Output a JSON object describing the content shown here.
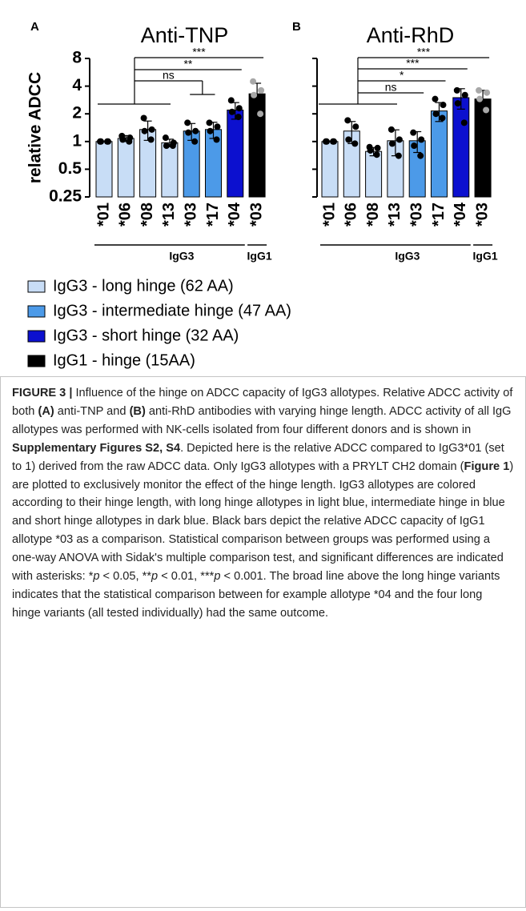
{
  "chart_data": [
    {
      "type": "bar",
      "panel": "A",
      "title": "Anti-TNP",
      "y_label": "relative ADCC",
      "categories": [
        "*01",
        "*06",
        "*08",
        "*13",
        "*03",
        "*17",
        "*04",
        "*03"
      ],
      "values": [
        1,
        1.08,
        1.35,
        0.97,
        1.3,
        1.35,
        2.2,
        3.3
      ],
      "errors": [
        0,
        0.08,
        0.32,
        0.09,
        0.27,
        0.27,
        0.45,
        1.0
      ],
      "points": [
        [
          1,
          1,
          1,
          1
        ],
        [
          1.15,
          1.1,
          1.05,
          1.0
        ],
        [
          1.8,
          1.35,
          1.3,
          1.05
        ],
        [
          1.1,
          0.97,
          0.9,
          0.9
        ],
        [
          1.6,
          1.3,
          1.25,
          1.0
        ],
        [
          1.6,
          1.45,
          1.3,
          1.05
        ],
        [
          2.8,
          2.3,
          2.1,
          1.85
        ],
        [
          4.5,
          3.6,
          3.2,
          2.0
        ]
      ],
      "colors": [
        "#c8ddf6",
        "#c8ddf6",
        "#c8ddf6",
        "#c8ddf6",
        "#4c9ae8",
        "#4c9ae8",
        "#0c10cf",
        "#000000"
      ],
      "groups": [
        "IgG3",
        "IgG1"
      ],
      "annotations": [
        "***",
        "**",
        "ns"
      ],
      "ylim": [
        0.25,
        8
      ],
      "yticks": [
        0.25,
        0.5,
        1,
        2,
        4,
        8
      ],
      "log_scale": true
    },
    {
      "type": "bar",
      "panel": "B",
      "title": "Anti-RhD",
      "categories": [
        "*01",
        "*06",
        "*08",
        "*13",
        "*03",
        "*17",
        "*04",
        "*03"
      ],
      "values": [
        1,
        1.3,
        0.78,
        1.02,
        1.02,
        2.15,
        3.0,
        2.9
      ],
      "errors": [
        0,
        0.35,
        0.08,
        0.32,
        0.26,
        0.5,
        0.75,
        0.7
      ],
      "points": [
        [
          1,
          1,
          1,
          1
        ],
        [
          1.7,
          1.45,
          1.05,
          0.95
        ],
        [
          0.87,
          0.85,
          0.8,
          0.72
        ],
        [
          1.35,
          1.05,
          0.95,
          0.7
        ],
        [
          1.25,
          1.05,
          0.9,
          0.7
        ],
        [
          2.9,
          2.5,
          2.0,
          1.8
        ],
        [
          3.6,
          3.2,
          2.6,
          1.6
        ],
        [
          3.6,
          3.4,
          2.9,
          2.2
        ]
      ],
      "colors": [
        "#c8ddf6",
        "#c8ddf6",
        "#c8ddf6",
        "#c8ddf6",
        "#4c9ae8",
        "#4c9ae8",
        "#0c10cf",
        "#000000"
      ],
      "groups": [
        "IgG3",
        "IgG1"
      ],
      "annotations": [
        "***",
        "***",
        "*",
        "ns"
      ],
      "ylim": [
        0.25,
        8
      ],
      "yticks": [
        0.25,
        0.5,
        1,
        2,
        4,
        8
      ],
      "log_scale": true
    }
  ],
  "legend": [
    {
      "name": "IgG3 - long hinge (62 AA)",
      "color": "#c8ddf6"
    },
    {
      "name": "IgG3 - intermediate hinge (47 AA)",
      "color": "#4c9ae8"
    },
    {
      "name": "IgG3 - short hinge (32 AA)",
      "color": "#0c10cf"
    },
    {
      "name": "IgG1 - hinge (15AA)",
      "color": "#000000"
    }
  ],
  "caption": [
    {
      "text": "FIGURE 3 |",
      "style": "bold"
    },
    {
      "text": " Influence of the hinge on ADCC capacity of IgG3 allotypes. Relative ADCC activity of both "
    },
    {
      "text": "(A)",
      "style": "bold"
    },
    {
      "text": " anti-TNP and "
    },
    {
      "text": "(B)",
      "style": "bold"
    },
    {
      "text": " anti-RhD antibodies with varying hinge length. ADCC activity of all IgG allotypes was performed with NK-cells isolated from four different donors and is shown in "
    },
    {
      "text": "Supplementary Figures S2, S4",
      "style": "bold"
    },
    {
      "text": ". Depicted here is the relative ADCC compared to IgG3*01 (set to 1) derived from the raw ADCC data. Only IgG3 allotypes with a PRYLT CH2 domain ("
    },
    {
      "text": "Figure 1",
      "style": "bold"
    },
    {
      "text": ") are plotted to exclusively monitor the effect of the hinge length. IgG3 allotypes are colored according to their hinge length, with long hinge allotypes in light blue, intermediate hinge in blue and short hinge allotypes in dark blue. Black bars depict the relative ADCC capacity of IgG1 allotype *03 as a comparison. Statistical comparison between groups was performed using a one-way ANOVA with Sidak's multiple comparison test, and significant differences are indicated with asterisks: *"
    },
    {
      "text": "p",
      "style": "italic"
    },
    {
      "text": " < 0.05, **"
    },
    {
      "text": "p",
      "style": "italic"
    },
    {
      "text": " < 0.01, ***"
    },
    {
      "text": "p",
      "style": "italic"
    },
    {
      "text": " < 0.001. The broad line above the long hinge variants indicates that the statistical comparison between for example allotype *04 and the four long hinge variants (all tested individually) had the same outcome."
    }
  ]
}
